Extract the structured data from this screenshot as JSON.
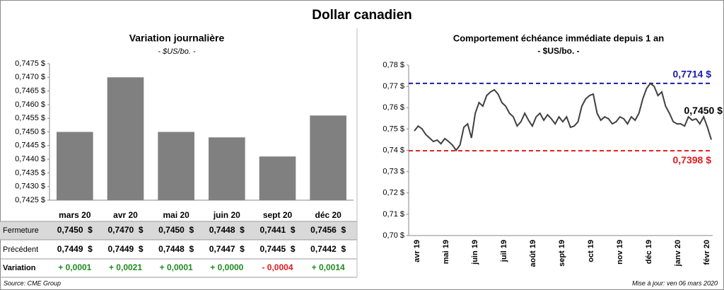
{
  "title": "Dollar canadien",
  "chart_data": [
    {
      "type": "bar",
      "title": "Variation  journalière",
      "subtitle": "- $US/bo. -",
      "categories": [
        "mars 20",
        "avr 20",
        "mai 20",
        "juin 20",
        "sept 20",
        "déc 20"
      ],
      "values": [
        0.745,
        0.747,
        0.745,
        0.7448,
        0.7441,
        0.7456
      ],
      "color": "#808080",
      "ylim": [
        0.7425,
        0.7475
      ],
      "yticks": [
        {
          "value": 0.7425,
          "label": "0,7425 $"
        },
        {
          "value": 0.743,
          "label": "0,7430 $"
        },
        {
          "value": 0.7435,
          "label": "0,7435 $"
        },
        {
          "value": 0.744,
          "label": "0,7440 $"
        },
        {
          "value": 0.7445,
          "label": "0,7445 $"
        },
        {
          "value": 0.745,
          "label": "0,7450 $"
        },
        {
          "value": 0.7455,
          "label": "0,7455 $"
        },
        {
          "value": 0.746,
          "label": "0,7460 $"
        },
        {
          "value": 0.7465,
          "label": "0,7465 $"
        },
        {
          "value": 0.747,
          "label": "0,7470 $"
        },
        {
          "value": 0.7475,
          "label": "0,7475 $"
        }
      ],
      "grid": false
    },
    {
      "type": "line",
      "title": "Comportement échéance immédiate depuis 1 an",
      "subtitle": "- $US/bo. -",
      "x_tick_labels": [
        "avr 19",
        "mai 19",
        "juin 19",
        "juil 19",
        "août 19",
        "sept 19",
        "oct 19",
        "nov 19",
        "déc 19",
        "janv 20",
        "févr 20"
      ],
      "series": [
        {
          "name": "Dollar canadien",
          "color": "#404040",
          "values": [
            0.7491,
            0.7514,
            0.7501,
            0.7474,
            0.7458,
            0.7441,
            0.7448,
            0.7431,
            0.7455,
            0.7441,
            0.7425,
            0.74,
            0.7425,
            0.7508,
            0.7524,
            0.7458,
            0.7574,
            0.7624,
            0.7607,
            0.7657,
            0.7674,
            0.7684,
            0.7664,
            0.7624,
            0.7607,
            0.7574,
            0.7557,
            0.7514,
            0.7534,
            0.7574,
            0.7541,
            0.7514,
            0.7557,
            0.7574,
            0.7541,
            0.7567,
            0.7548,
            0.7524,
            0.7557,
            0.7534,
            0.7557,
            0.7508,
            0.7514,
            0.7534,
            0.7607,
            0.7641,
            0.7657,
            0.7664,
            0.7574,
            0.7541,
            0.7557,
            0.7548,
            0.7524,
            0.7534,
            0.7557,
            0.7548,
            0.7524,
            0.7557,
            0.7541,
            0.7574,
            0.7641,
            0.769,
            0.7714,
            0.77,
            0.7657,
            0.7674,
            0.7607,
            0.7574,
            0.7534,
            0.7524,
            0.7524,
            0.7514,
            0.7557,
            0.7541,
            0.7548,
            0.7524,
            0.7557,
            0.7508,
            0.745
          ]
        }
      ],
      "ylim": [
        0.7,
        0.78
      ],
      "yticks": [
        {
          "value": 0.7,
          "label": "0,70 $"
        },
        {
          "value": 0.71,
          "label": "0,71 $"
        },
        {
          "value": 0.72,
          "label": "0,72 $"
        },
        {
          "value": 0.73,
          "label": "0,73 $"
        },
        {
          "value": 0.74,
          "label": "0,74 $"
        },
        {
          "value": 0.75,
          "label": "0,75 $"
        },
        {
          "value": 0.76,
          "label": "0,76 $"
        },
        {
          "value": 0.77,
          "label": "0,77 $"
        },
        {
          "value": 0.78,
          "label": "0,78 $"
        }
      ],
      "reference_lines": [
        {
          "value": 0.7714,
          "label": "0,7714 $",
          "color": "#1c1ca8"
        },
        {
          "value": 0.7398,
          "label": "0,7398 $",
          "color": "#e31a1c"
        }
      ],
      "last_label": "0,7450 $"
    }
  ],
  "table": {
    "rows": [
      {
        "label": "Fermeture",
        "cells": [
          "0,7450  $",
          "0,7470  $",
          "0,7450  $",
          "0,7448  $",
          "0,7441  $",
          "0,7456  $"
        ]
      },
      {
        "label": "Précédent",
        "cells": [
          "0,7449  $",
          "0,7449  $",
          "0,7448  $",
          "0,7447  $",
          "0,7445  $",
          "0,7442  $"
        ]
      },
      {
        "label": "Variation",
        "cells": [
          "+ 0,0001",
          "+ 0,0021",
          "+ 0,0001",
          "+ 0,0000",
          "- 0,0004",
          "+ 0,0014"
        ]
      }
    ],
    "up_color": "#1e8c1e",
    "down_color": "#e31a1c"
  },
  "source": "Source: CME Group",
  "updated": "Mise à jour: ven 06 mars 2020"
}
